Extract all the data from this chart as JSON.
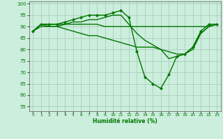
{
  "xlabel": "Humidité relative (%)",
  "bg_color": "#cceedd",
  "grid_color": "#aaccbb",
  "line_color": "#007700",
  "ylim": [
    53,
    101
  ],
  "xlim": [
    -0.5,
    23.5
  ],
  "yticks": [
    55,
    60,
    65,
    70,
    75,
    80,
    85,
    90,
    95,
    100
  ],
  "xticks": [
    0,
    1,
    2,
    3,
    4,
    5,
    6,
    7,
    8,
    9,
    10,
    11,
    12,
    13,
    14,
    15,
    16,
    17,
    18,
    19,
    20,
    21,
    22,
    23
  ],
  "lines": [
    {
      "x": [
        0,
        1,
        2,
        3,
        4,
        5,
        6,
        7,
        8,
        9,
        10,
        11,
        12,
        13,
        14,
        15,
        16,
        17,
        18,
        19,
        20,
        21,
        22,
        23
      ],
      "y": [
        88,
        91,
        91,
        91,
        92,
        93,
        94,
        95,
        95,
        95,
        96,
        97,
        94,
        79,
        68,
        65,
        63,
        69,
        77,
        78,
        81,
        88,
        91,
        91
      ],
      "marker": "D",
      "markersize": 2.0,
      "linewidth": 1.0
    },
    {
      "x": [
        0,
        1,
        2,
        3,
        4,
        5,
        6,
        7,
        8,
        9,
        10,
        11,
        12,
        13,
        14,
        15,
        16,
        17,
        18,
        19,
        20,
        21,
        22,
        23
      ],
      "y": [
        88,
        91,
        90,
        90,
        91,
        91,
        91,
        91,
        91,
        90,
        90,
        90,
        90,
        90,
        90,
        90,
        90,
        90,
        90,
        90,
        90,
        90,
        90,
        91
      ],
      "marker": null,
      "markersize": 0,
      "linewidth": 1.0
    },
    {
      "x": [
        0,
        1,
        2,
        3,
        4,
        5,
        6,
        7,
        8,
        9,
        10,
        11,
        12,
        13,
        14,
        15,
        16,
        17,
        18,
        19,
        20,
        21,
        22,
        23
      ],
      "y": [
        88,
        90,
        90,
        90,
        89,
        88,
        87,
        86,
        86,
        85,
        84,
        83,
        82,
        81,
        81,
        81,
        80,
        79,
        78,
        78,
        80,
        87,
        90,
        91
      ],
      "marker": null,
      "markersize": 0,
      "linewidth": 1.0
    },
    {
      "x": [
        0,
        1,
        2,
        3,
        4,
        5,
        6,
        7,
        8,
        9,
        10,
        11,
        12,
        13,
        14,
        15,
        16,
        17,
        18,
        19,
        20,
        21,
        22,
        23
      ],
      "y": [
        88,
        91,
        91,
        91,
        91,
        92,
        92,
        93,
        93,
        94,
        95,
        95,
        91,
        87,
        84,
        82,
        80,
        76,
        77,
        78,
        81,
        87,
        90,
        91
      ],
      "marker": null,
      "markersize": 0,
      "linewidth": 1.0
    }
  ]
}
